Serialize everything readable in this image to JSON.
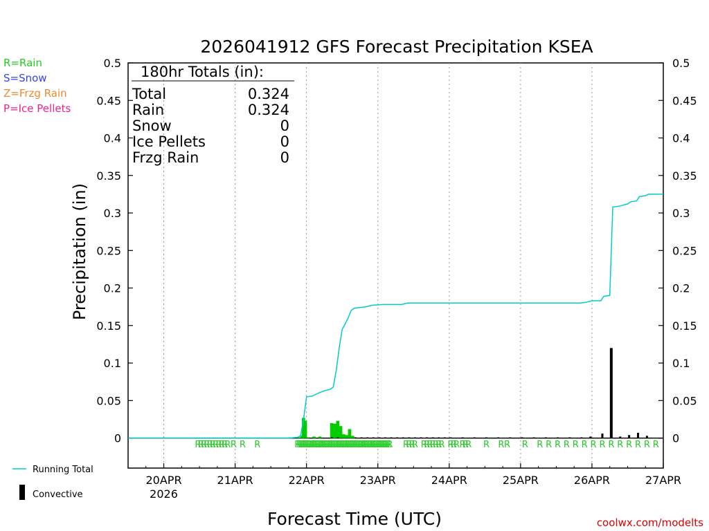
{
  "chart_data": {
    "type": "bar+line",
    "title": "2026041912 GFS Forecast Precipitation KSEA",
    "xlabel": "Forecast Time (UTC)",
    "ylabel": "Precipitation (in)",
    "ylim": [
      -0.04,
      0.5
    ],
    "xlim_hours": [
      -12,
      168
    ],
    "y_ticks": [
      "0.5",
      "0.45",
      "0.4",
      "0.35",
      "0.3",
      "0.25",
      "0.2",
      "0.15",
      "0.1",
      "0.05",
      "0"
    ],
    "x_ticks": [
      {
        "hour": 0,
        "label": "20APR",
        "sublabel": "2026"
      },
      {
        "hour": 24,
        "label": "21APR",
        "sublabel": ""
      },
      {
        "hour": 48,
        "label": "22APR",
        "sublabel": ""
      },
      {
        "hour": 72,
        "label": "23APR",
        "sublabel": ""
      },
      {
        "hour": 96,
        "label": "24APR",
        "sublabel": ""
      },
      {
        "hour": 120,
        "label": "25APR",
        "sublabel": ""
      },
      {
        "hour": 144,
        "label": "26APR",
        "sublabel": ""
      },
      {
        "hour": 168,
        "label": "27APR",
        "sublabel": ""
      }
    ],
    "grid": true,
    "totals_box": {
      "header": "180hr Totals (in):",
      "rows": [
        {
          "label": "Total",
          "value": "0.324"
        },
        {
          "label": "Rain",
          "value": "0.324"
        },
        {
          "label": "Snow",
          "value": "0"
        },
        {
          "label": "Ice Pellets",
          "value": "0"
        },
        {
          "label": "Frzg Rain",
          "value": "0"
        }
      ]
    },
    "ptype_legend": [
      {
        "label": "R=Rain",
        "color": "#22cc22"
      },
      {
        "label": "S=Snow",
        "color": "#3344ee"
      },
      {
        "label": "Z=Frzg Rain",
        "color": "#ee8833"
      },
      {
        "label": "P=Ice Pellets",
        "color": "#ee2288"
      }
    ],
    "series_legend": [
      {
        "label": "Running Total",
        "color": "#00cccc",
        "kind": "line"
      },
      {
        "label": "Convective",
        "color": "#000000",
        "kind": "bar"
      }
    ],
    "running_total": {
      "name": "Running Total",
      "points": [
        [
          -12,
          0
        ],
        [
          42,
          0
        ],
        [
          45,
          0.001
        ],
        [
          46,
          0.003
        ],
        [
          47,
          0.025
        ],
        [
          48,
          0.055
        ],
        [
          50,
          0.056
        ],
        [
          52,
          0.06
        ],
        [
          54,
          0.063
        ],
        [
          56,
          0.065
        ],
        [
          57,
          0.068
        ],
        [
          58,
          0.09
        ],
        [
          59,
          0.12
        ],
        [
          60,
          0.145
        ],
        [
          61,
          0.152
        ],
        [
          62,
          0.16
        ],
        [
          63,
          0.17
        ],
        [
          64,
          0.173
        ],
        [
          66,
          0.174
        ],
        [
          68,
          0.175
        ],
        [
          70,
          0.177
        ],
        [
          74,
          0.178
        ],
        [
          80,
          0.178
        ],
        [
          82,
          0.18
        ],
        [
          140,
          0.18
        ],
        [
          142,
          0.181
        ],
        [
          144,
          0.183
        ],
        [
          147,
          0.183
        ],
        [
          148,
          0.189
        ],
        [
          150,
          0.19
        ],
        [
          151,
          0.308
        ],
        [
          153,
          0.309
        ],
        [
          154,
          0.31
        ],
        [
          156,
          0.312
        ],
        [
          157,
          0.315
        ],
        [
          159,
          0.316
        ],
        [
          160,
          0.322
        ],
        [
          162,
          0.323
        ],
        [
          163,
          0.325
        ],
        [
          168,
          0.325
        ]
      ]
    },
    "rain_bars": [
      {
        "hour": 42.5,
        "value": 0.001
      },
      {
        "hour": 45.5,
        "value": 0.001
      },
      {
        "hour": 46.5,
        "value": 0.003
      },
      {
        "hour": 47,
        "value": 0.027
      },
      {
        "hour": 47.6,
        "value": 0.023
      },
      {
        "hour": 48.5,
        "value": 0.001
      },
      {
        "hour": 50.5,
        "value": 0.002
      },
      {
        "hour": 52.5,
        "value": 0.002
      },
      {
        "hour": 56.5,
        "value": 0.02
      },
      {
        "hour": 57.5,
        "value": 0.019
      },
      {
        "hour": 58.5,
        "value": 0.023
      },
      {
        "hour": 59.5,
        "value": 0.016
      },
      {
        "hour": 60.5,
        "value": 0.005
      },
      {
        "hour": 61.5,
        "value": 0.004
      },
      {
        "hour": 62.5,
        "value": 0.012
      },
      {
        "hour": 63.5,
        "value": 0.003
      },
      {
        "hour": 64.5,
        "value": 0.001
      }
    ],
    "convective_bars": [
      {
        "hour": 56.5,
        "value": 0.001
      },
      {
        "hour": 58.5,
        "value": 0.001
      },
      {
        "hour": 64.5,
        "value": 0.001
      },
      {
        "hour": 66.5,
        "value": 0.001
      },
      {
        "hour": 68.5,
        "value": 0.001
      },
      {
        "hour": 70.5,
        "value": 0.001
      },
      {
        "hour": 72.5,
        "value": 0.001
      },
      {
        "hour": 74.5,
        "value": 0.001
      },
      {
        "hour": 76.5,
        "value": 0.001
      },
      {
        "hour": 78.5,
        "value": 0.001
      },
      {
        "hour": 80.5,
        "value": 0.001
      },
      {
        "hour": 82.5,
        "value": 0.001
      },
      {
        "hour": 84.5,
        "value": 0.001
      },
      {
        "hour": 86.5,
        "value": 0.001
      },
      {
        "hour": 88.5,
        "value": 0.001
      },
      {
        "hour": 90.5,
        "value": 0.001
      },
      {
        "hour": 92.5,
        "value": 0.001
      },
      {
        "hour": 94.5,
        "value": 0.001
      },
      {
        "hour": 96.5,
        "value": 0.001
      },
      {
        "hour": 100.5,
        "value": 0.001
      },
      {
        "hour": 104.5,
        "value": 0.001
      },
      {
        "hour": 108.5,
        "value": 0.001
      },
      {
        "hour": 112.5,
        "value": 0.001
      },
      {
        "hour": 116.5,
        "value": 0.001
      },
      {
        "hour": 120.5,
        "value": 0.001
      },
      {
        "hour": 124.5,
        "value": 0.001
      },
      {
        "hour": 128.5,
        "value": 0.001
      },
      {
        "hour": 132.5,
        "value": 0.001
      },
      {
        "hour": 136.5,
        "value": 0.001
      },
      {
        "hour": 140.5,
        "value": 0.001
      },
      {
        "hour": 143.5,
        "value": 0.002
      },
      {
        "hour": 147.5,
        "value": 0.006
      },
      {
        "hour": 150.5,
        "value": 0.12
      },
      {
        "hour": 153.5,
        "value": 0.002
      },
      {
        "hour": 156.5,
        "value": 0.004
      },
      {
        "hour": 159.5,
        "value": 0.007
      },
      {
        "hour": 162.5,
        "value": 0.003
      }
    ],
    "ptype_marks": {
      "letter": "R",
      "hours": [
        11.5,
        12.5,
        13.5,
        14.5,
        15.5,
        16.5,
        17.5,
        18.5,
        19.5,
        20.5,
        21.5,
        23.5,
        26.5,
        31.5,
        45,
        45.5,
        46,
        46.5,
        47,
        47.5,
        48,
        48.5,
        49,
        49.5,
        50,
        50.5,
        51,
        51.5,
        52,
        52.5,
        53,
        53.5,
        54,
        54.5,
        55,
        55.5,
        56,
        56.5,
        57,
        57.5,
        58,
        58.5,
        59,
        59.5,
        60,
        60.5,
        61,
        61.5,
        62,
        62.5,
        63,
        63.5,
        64,
        64.5,
        65,
        65.5,
        66,
        66.5,
        67,
        67.5,
        68,
        68.5,
        69,
        69.5,
        70,
        70.5,
        71,
        71.5,
        72,
        72.5,
        73,
        73.5,
        74,
        74.5,
        75,
        75.5,
        76,
        81.5,
        82.5,
        83.5,
        84.5,
        87.5,
        88.5,
        89.5,
        90.5,
        91.5,
        92.5,
        93.5,
        96.5,
        97.5,
        98.5,
        100.5,
        101.5,
        102.5,
        108.5,
        113.5,
        115.5,
        121.5,
        126.5,
        129.5,
        132.5,
        135.5,
        138.5,
        141.5,
        144.5,
        147.5,
        150.5,
        153.5,
        156.5,
        159.5,
        162.5,
        165.5
      ]
    }
  },
  "credit": "coolwx.com/modelts"
}
